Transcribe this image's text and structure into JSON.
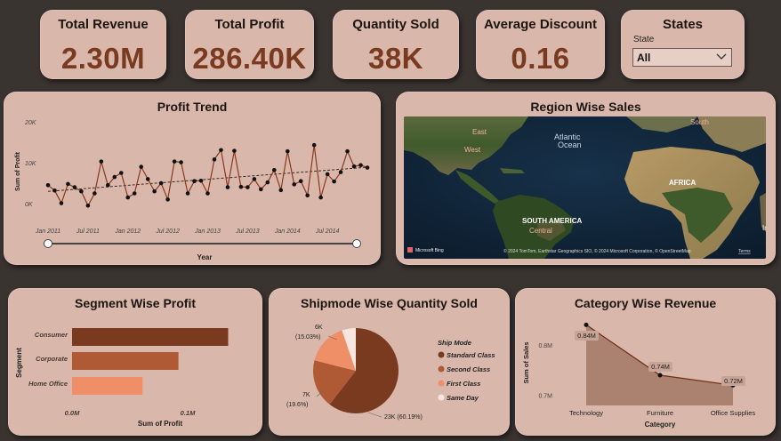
{
  "kpis": {
    "revenue": {
      "title": "Total Revenue",
      "value": "2.30M"
    },
    "profit": {
      "title": "Total Profit",
      "value": "286.40K"
    },
    "quantity": {
      "title": "Quantity Sold",
      "value": "38K"
    },
    "discount": {
      "title": "Average Discount",
      "value": "0.16"
    }
  },
  "states_slicer": {
    "title": "States",
    "label": "State",
    "selected": "All"
  },
  "profit_trend": {
    "title": "Profit Trend",
    "chart_data": {
      "type": "line",
      "ylabel": "Sum of Profit",
      "xlabel": "Year",
      "y_ticks": [
        "20K",
        "10K",
        "0K"
      ],
      "y_tick_values": [
        20000,
        10000,
        0
      ],
      "x_ticks": [
        "Jan 2011",
        "Jul 2011",
        "Jan 2012",
        "Jul 2012",
        "Jan 2013",
        "Jul 2013",
        "Jan 2014",
        "Jul 2014"
      ],
      "ylim": [
        0,
        20000
      ],
      "values": [
        4500,
        3200,
        100,
        4800,
        4000,
        3000,
        -500,
        2500,
        10300,
        4500,
        6500,
        7500,
        1500,
        2500,
        9000,
        6000,
        3000,
        5000,
        1000,
        10300,
        10100,
        2500,
        5500,
        5600,
        2500,
        10800,
        13100,
        4000,
        12900,
        4100,
        4000,
        6000,
        3500,
        5200,
        8200,
        3300,
        12800,
        4700,
        5500,
        2000,
        14300,
        1500,
        7200,
        5400,
        7700,
        12800,
        9100,
        9400,
        8800
      ],
      "trendline": [
        3000,
        8900
      ],
      "range_slider": {
        "start": "Jan 2011",
        "end": "Dec 2014"
      }
    }
  },
  "region_map": {
    "title": "Region Wise Sales",
    "labels": {
      "east": "East",
      "west": "West",
      "central": "Central",
      "south": "South",
      "atlantic": "Atlantic",
      "ocean": "Ocean",
      "south_america": "SOUTH AMERICA",
      "africa": "AFRICA",
      "edge": "In"
    },
    "bing_logo": "Microsoft Bing",
    "attribution": "© 2024 TomTom, Earthstar Geographics SIO, © 2024 Microsoft Corporation, © OpenStreetMap",
    "terms": "Terms"
  },
  "segment_profit": {
    "title": "Segment Wise Profit",
    "chart_data": {
      "type": "bar",
      "orientation": "horizontal",
      "categories": [
        "Consumer",
        "Corporate",
        "Home Office"
      ],
      "values": [
        135000,
        92000,
        61000
      ],
      "xlabel": "Sum of Profit",
      "ylabel": "Segment",
      "x_ticks": [
        "0.0M",
        "0.1M"
      ],
      "x_tick_values": [
        0,
        100000
      ],
      "colors": [
        "#7a3a20",
        "#b05a35",
        "#ee8f68"
      ]
    }
  },
  "shipmode_quantity": {
    "title": "Shipmode Wise Quantity Sold",
    "chart_data": {
      "type": "pie",
      "categories": [
        "Standard Class",
        "Second Class",
        "First Class",
        "Same Day"
      ],
      "values": [
        23000,
        7000,
        6000,
        2000
      ],
      "percent_labels": [
        "23K (60.19%)",
        "7K",
        "6K",
        ""
      ],
      "percent_sub": [
        "",
        "(19.6%)",
        "(15.03%)",
        ""
      ],
      "legend_title": "Ship Mode",
      "legend_position": "right",
      "colors": [
        "#7a3a20",
        "#b05a35",
        "#ee8f68",
        "#f7e6df"
      ]
    }
  },
  "category_revenue": {
    "title": "Category Wise Revenue",
    "chart_data": {
      "type": "area",
      "categories": [
        "Technology",
        "Furniture",
        "Office Supplies"
      ],
      "values": [
        0.84,
        0.74,
        0.72
      ],
      "data_labels": [
        "0.84M",
        "0.74M",
        "0.72M"
      ],
      "xlabel": "Category",
      "ylabel": "Sum of Sales",
      "y_ticks": [
        "0.8M",
        "0.7M"
      ],
      "y_tick_values": [
        0.8,
        0.7
      ],
      "ylim": [
        0.68,
        0.86
      ]
    }
  },
  "colors": {
    "background": "#3a3431",
    "card": "#d9b8ab",
    "accent": "#7a3a20"
  }
}
